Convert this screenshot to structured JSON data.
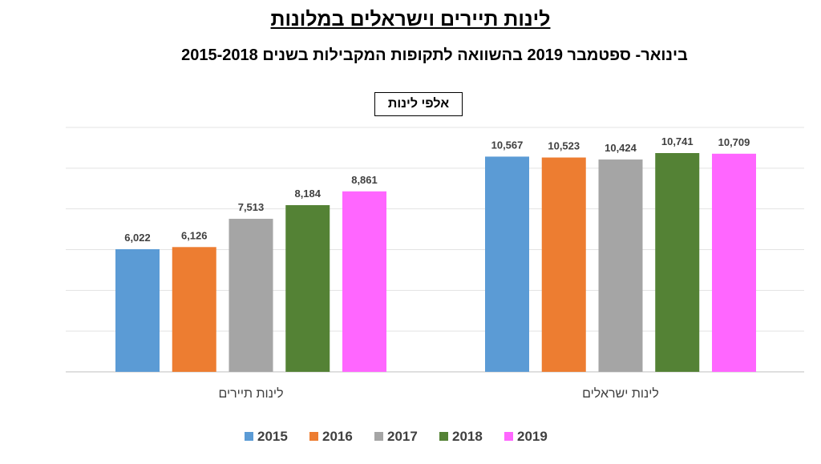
{
  "chart_data": {
    "type": "bar",
    "title": "לינות תיירים  וישראלים במלונות",
    "subtitle": "בינואר- ספטמבר 2019 בהשוואה לתקופות המקבילות בשנים 2015-2018",
    "unit_label": "אלפי לינות",
    "categories": [
      "לינות  תיירים",
      "לינות ישראלים"
    ],
    "series": [
      {
        "name": "2015",
        "color": "#5B9BD5",
        "values": [
          6022,
          10567
        ],
        "labels": [
          "6,022",
          "10,567"
        ]
      },
      {
        "name": "2016",
        "color": "#ED7D31",
        "values": [
          6126,
          10523
        ],
        "labels": [
          "6,126",
          "10,523"
        ]
      },
      {
        "name": "2017",
        "color": "#A5A5A5",
        "values": [
          7513,
          10424
        ],
        "labels": [
          "7,513",
          "10,424"
        ]
      },
      {
        "name": "2018",
        "color": "#548235",
        "values": [
          8184,
          10741
        ],
        "labels": [
          "8,184",
          "10,741"
        ]
      },
      {
        "name": "2019",
        "color": "#FF66FF",
        "values": [
          8861,
          10709
        ],
        "labels": [
          "8,861",
          "10,709"
        ]
      }
    ],
    "ylim": [
      0,
      12000
    ],
    "grid": true,
    "legend": "bottom"
  }
}
